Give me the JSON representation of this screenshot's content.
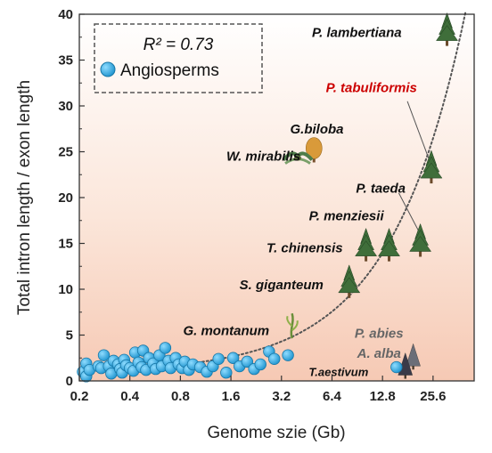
{
  "chart_data": {
    "type": "scatter",
    "xlabel": "Genome szie (Gb)",
    "ylabel": "Total intron length / exon length",
    "x_scale": "log2",
    "xlim": [
      0.2,
      45
    ],
    "ylim": [
      0,
      40
    ],
    "x_ticks": [
      {
        "value": 0.2,
        "label": "0.2"
      },
      {
        "value": 0.4,
        "label": "0.4"
      },
      {
        "value": 0.8,
        "label": "0.8"
      },
      {
        "value": 1.6,
        "label": "1.6"
      },
      {
        "value": 3.2,
        "label": "3.2"
      },
      {
        "value": 6.4,
        "label": "6.4"
      },
      {
        "value": 12.8,
        "label": "12.8"
      },
      {
        "value": 25.6,
        "label": "25.6"
      }
    ],
    "y_ticks": [
      0,
      5,
      10,
      15,
      20,
      25,
      30,
      35,
      40
    ],
    "legend": {
      "r2_label": "R² = 0.73",
      "series_label": "Angiosperms",
      "series_color": "#29a8e0",
      "placement": "top-left"
    },
    "trend_line": {
      "style": "dotted",
      "color": "#555555"
    },
    "angiosperms": [
      [
        0.21,
        1.0
      ],
      [
        0.22,
        1.9
      ],
      [
        0.22,
        0.5
      ],
      [
        0.23,
        1.2
      ],
      [
        0.26,
        1.6
      ],
      [
        0.27,
        1.4
      ],
      [
        0.28,
        2.8
      ],
      [
        0.3,
        1.6
      ],
      [
        0.31,
        0.8
      ],
      [
        0.32,
        2.2
      ],
      [
        0.34,
        1.8
      ],
      [
        0.35,
        1.3
      ],
      [
        0.36,
        0.9
      ],
      [
        0.37,
        2.3
      ],
      [
        0.38,
        1.7
      ],
      [
        0.4,
        1.4
      ],
      [
        0.42,
        1.1
      ],
      [
        0.43,
        3.1
      ],
      [
        0.45,
        2.0
      ],
      [
        0.47,
        1.5
      ],
      [
        0.48,
        3.3
      ],
      [
        0.5,
        1.2
      ],
      [
        0.52,
        2.5
      ],
      [
        0.55,
        1.9
      ],
      [
        0.57,
        1.3
      ],
      [
        0.6,
        2.8
      ],
      [
        0.62,
        1.6
      ],
      [
        0.65,
        3.6
      ],
      [
        0.68,
        2.2
      ],
      [
        0.7,
        1.4
      ],
      [
        0.75,
        2.5
      ],
      [
        0.78,
        1.8
      ],
      [
        0.82,
        1.4
      ],
      [
        0.85,
        2.1
      ],
      [
        0.9,
        1.2
      ],
      [
        0.95,
        1.8
      ],
      [
        1.05,
        1.5
      ],
      [
        1.15,
        1.0
      ],
      [
        1.25,
        1.6
      ],
      [
        1.35,
        2.4
      ],
      [
        1.5,
        0.9
      ],
      [
        1.65,
        2.5
      ],
      [
        1.8,
        1.6
      ],
      [
        2.0,
        2.1
      ],
      [
        2.2,
        1.3
      ],
      [
        2.4,
        1.8
      ],
      [
        2.7,
        3.2
      ],
      [
        2.9,
        2.4
      ],
      [
        3.5,
        2.8
      ]
    ],
    "labels": [
      {
        "name": "P. lambertiana",
        "x": 9.0,
        "y": 38.0,
        "color": "#111111",
        "class": "sp"
      },
      {
        "name": "P. tabuliformis",
        "x": 11.0,
        "y": 32.0,
        "color": "#cc0000",
        "class": "sp"
      },
      {
        "name": "G.biloba",
        "x": 5.2,
        "y": 27.5,
        "color": "#111111",
        "class": "sp"
      },
      {
        "name": "W. mirabilis",
        "x": 2.5,
        "y": 24.5,
        "color": "#111111",
        "class": "sp"
      },
      {
        "name": "P. taeda",
        "x": 12.5,
        "y": 21.0,
        "color": "#111111",
        "class": "sp"
      },
      {
        "name": "P. menziesii",
        "x": 7.8,
        "y": 18.0,
        "color": "#111111",
        "class": "sp"
      },
      {
        "name": "T. chinensis",
        "x": 4.4,
        "y": 14.5,
        "color": "#111111",
        "class": "sp"
      },
      {
        "name": "S. giganteum",
        "x": 3.2,
        "y": 10.5,
        "color": "#111111",
        "class": "sp"
      },
      {
        "name": "G. montanum",
        "x": 1.5,
        "y": 5.5,
        "color": "#111111",
        "class": "sp"
      },
      {
        "name": "P. abies",
        "x": 12.2,
        "y": 5.2,
        "color": "#666666",
        "class": "sp"
      },
      {
        "name": "A. alba",
        "x": 12.2,
        "y": 3.0,
        "color": "#666666",
        "class": "sp"
      },
      {
        "name": "T.aestivum",
        "x": 7.0,
        "y": 1.0,
        "color": "#111111",
        "class": "sp-small"
      }
    ],
    "gymnosperms": [
      {
        "name": "P. lambertiana",
        "x": 31.0,
        "y": 38.0,
        "icon": "pine-tree-icon"
      },
      {
        "name": "P. tabuliformis",
        "x": 25.0,
        "y": 23.0,
        "icon": "pine-tree-icon"
      },
      {
        "name": "P. taeda",
        "x": 21.5,
        "y": 15.0,
        "icon": "pine-tree-icon"
      },
      {
        "name": "P. menziesii",
        "x": 14.0,
        "y": 14.5,
        "icon": "pine-tree-icon"
      },
      {
        "name": "T. chinensis",
        "x": 10.2,
        "y": 14.5,
        "icon": "pine-tree-icon"
      },
      {
        "name": "S. giganteum",
        "x": 8.1,
        "y": 10.5,
        "icon": "pine-tree-icon"
      },
      {
        "name": "G.biloba",
        "x": 5.0,
        "y": 25.0,
        "icon": "ginkgo-tree-icon"
      },
      {
        "name": "W. mirabilis",
        "x": 4.0,
        "y": 24.5,
        "icon": "welwitschia-icon"
      },
      {
        "name": "G. montanum",
        "x": 3.7,
        "y": 6.0,
        "icon": "gnetum-vine-icon"
      },
      {
        "name": "P. abies",
        "x": 19.5,
        "y": 2.5,
        "icon": "spruce-tree-icon"
      },
      {
        "name": "A. alba",
        "x": 17.5,
        "y": 1.5,
        "icon": "fir-tree-icon"
      },
      {
        "name": "T.aestivum",
        "x": 15.5,
        "y": 1.5,
        "icon": "point"
      }
    ],
    "leader_lines": [
      {
        "from": [
          18.0,
          30.5
        ],
        "to": [
          25.0,
          23.5
        ]
      },
      {
        "from": [
          16.0,
          20.5
        ],
        "to": [
          21.5,
          16.0
        ]
      }
    ]
  }
}
